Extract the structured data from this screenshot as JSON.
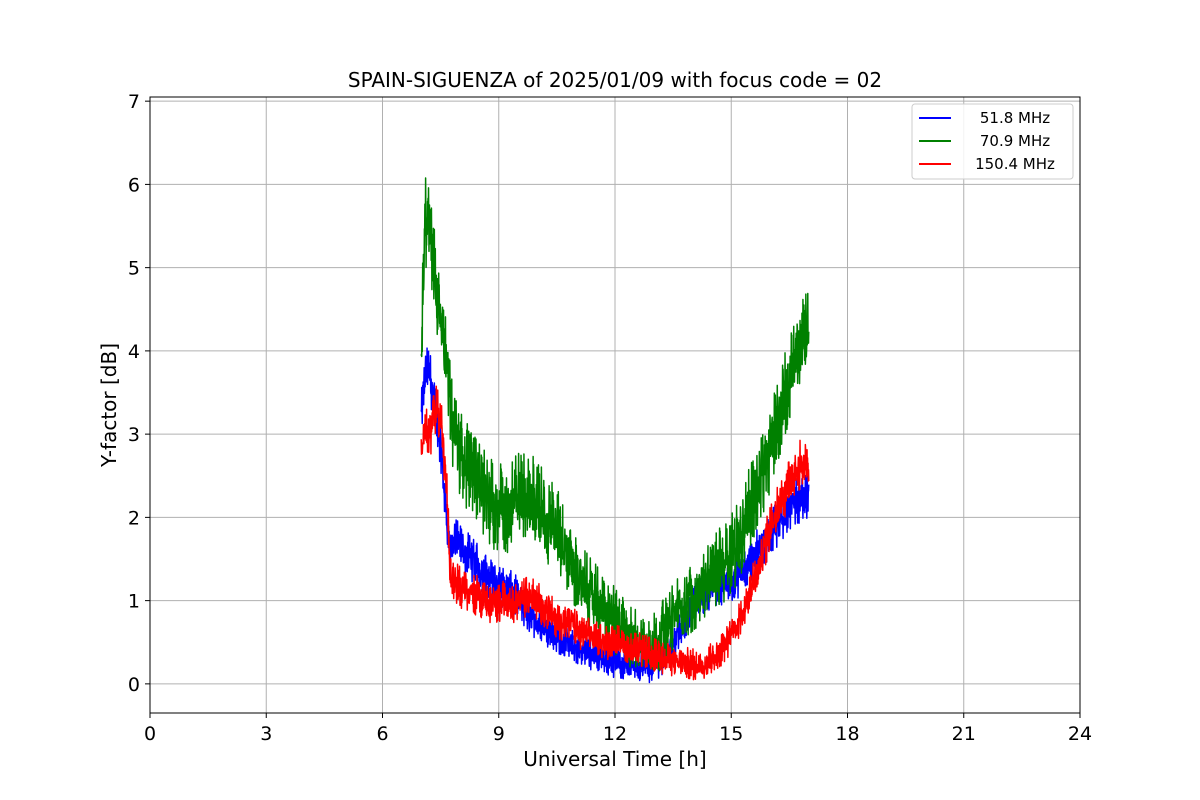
{
  "chart_data": {
    "type": "line",
    "title": "SPAIN-SIGUENZA of 2025/01/09 with focus code = 02",
    "xlabel": "Universal Time [h]",
    "ylabel": "Y-factor [dB]",
    "xlim": [
      0,
      24
    ],
    "ylim": [
      -0.35,
      7.05
    ],
    "xticks": [
      0,
      3,
      6,
      9,
      12,
      15,
      18,
      21,
      24
    ],
    "yticks": [
      0,
      1,
      2,
      3,
      4,
      5,
      6,
      7
    ],
    "grid": true,
    "legend_position": "top-right",
    "series": [
      {
        "name": "51.8 MHz",
        "color": "#0000ff",
        "noise": 0.3,
        "x": [
          7.0,
          7.1,
          7.2,
          7.35,
          7.5,
          7.65,
          7.75,
          7.9,
          8.2,
          8.5,
          8.8,
          9.1,
          9.4,
          9.7,
          10.0,
          10.3,
          10.6,
          10.9,
          11.2,
          11.5,
          11.8,
          12.1,
          12.4,
          12.7,
          13.0,
          13.3,
          13.6,
          13.9,
          14.2,
          14.5,
          14.8,
          15.1,
          15.4,
          15.7,
          16.0,
          16.3,
          16.6,
          16.8,
          17.0
        ],
        "y": [
          3.2,
          3.7,
          3.8,
          3.3,
          2.9,
          2.0,
          1.6,
          1.7,
          1.55,
          1.4,
          1.25,
          1.15,
          1.1,
          0.85,
          0.75,
          0.65,
          0.55,
          0.45,
          0.4,
          0.35,
          0.3,
          0.25,
          0.25,
          0.2,
          0.2,
          0.35,
          0.55,
          0.85,
          1.05,
          1.15,
          1.2,
          1.25,
          1.4,
          1.6,
          1.8,
          2.0,
          2.15,
          2.25,
          2.2
        ]
      },
      {
        "name": "70.9 MHz",
        "color": "#008000",
        "noise": 0.55,
        "x": [
          7.0,
          7.1,
          7.2,
          7.35,
          7.5,
          7.65,
          7.8,
          8.0,
          8.3,
          8.6,
          8.9,
          9.2,
          9.5,
          9.8,
          10.1,
          10.4,
          10.7,
          11.0,
          11.3,
          11.6,
          11.9,
          12.2,
          12.5,
          12.8,
          13.1,
          13.4,
          13.7,
          14.0,
          14.3,
          14.6,
          14.9,
          15.2,
          15.5,
          15.8,
          16.1,
          16.4,
          16.7,
          16.9,
          17.0
        ],
        "y": [
          4.0,
          5.6,
          5.4,
          4.9,
          4.3,
          3.8,
          3.1,
          2.8,
          2.5,
          2.3,
          2.15,
          2.05,
          2.3,
          2.25,
          2.1,
          1.9,
          1.65,
          1.35,
          1.1,
          0.95,
          0.8,
          0.65,
          0.55,
          0.45,
          0.5,
          0.75,
          0.95,
          1.05,
          1.2,
          1.35,
          1.5,
          1.75,
          2.1,
          2.55,
          3.0,
          3.5,
          4.0,
          4.15,
          4.2
        ]
      },
      {
        "name": "150.4 MHz",
        "color": "#ff0000",
        "noise": 0.3,
        "x": [
          7.0,
          7.1,
          7.2,
          7.35,
          7.5,
          7.65,
          7.75,
          7.9,
          8.2,
          8.5,
          8.8,
          9.1,
          9.4,
          9.7,
          10.0,
          10.3,
          10.6,
          10.9,
          11.2,
          11.5,
          11.8,
          12.1,
          12.4,
          12.7,
          13.0,
          13.3,
          13.6,
          13.9,
          14.2,
          14.5,
          14.8,
          15.1,
          15.4,
          15.7,
          16.0,
          16.3,
          16.6,
          16.8,
          17.0
        ],
        "y": [
          2.8,
          3.1,
          2.9,
          3.3,
          3.2,
          2.4,
          1.25,
          1.2,
          1.1,
          1.05,
          0.95,
          1.0,
          0.95,
          1.05,
          1.0,
          0.85,
          0.75,
          0.7,
          0.6,
          0.55,
          0.5,
          0.5,
          0.45,
          0.4,
          0.35,
          0.3,
          0.25,
          0.25,
          0.2,
          0.3,
          0.45,
          0.65,
          1.0,
          1.4,
          1.85,
          2.2,
          2.5,
          2.65,
          2.7
        ]
      }
    ]
  }
}
